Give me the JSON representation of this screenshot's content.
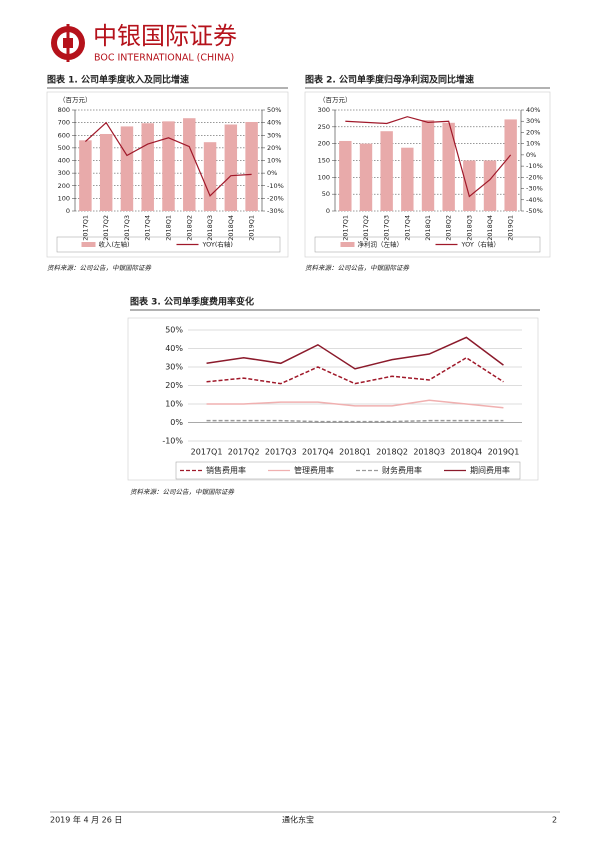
{
  "header": {
    "brand": "中银国际证券",
    "brand_en": "BOC INTERNATIONAL (CHINA)"
  },
  "chart_data": [
    {
      "type": "combo",
      "title": "图表 1. 公司单季度收入及同比增速",
      "unit": "（百万元）",
      "source": "资料来源：公司公告，中银国际证券",
      "categories": [
        "2017Q1",
        "2017Q2",
        "2017Q3",
        "2017Q4",
        "2018Q1",
        "2018Q2",
        "2018Q3",
        "2018Q4",
        "2019Q1"
      ],
      "series": [
        {
          "name": "收入(左轴)",
          "mark": "bar",
          "color": "#e8aaaa",
          "values": [
            560,
            610,
            670,
            695,
            710,
            735,
            545,
            685,
            705
          ]
        },
        {
          "name": "YOY(右轴)",
          "mark": "line",
          "axis": "y2",
          "color": "#a0192a",
          "values": [
            25,
            40,
            14,
            23,
            28,
            21,
            -18,
            -2,
            -1
          ]
        }
      ],
      "ylim": [
        0,
        800
      ],
      "yticks": [
        0,
        100,
        200,
        300,
        400,
        500,
        600,
        700,
        800
      ],
      "y2lim": [
        -30,
        50
      ],
      "y2ticks": [
        {
          "value": -30,
          "label": "-30%"
        },
        {
          "value": -20,
          "label": "-20%"
        },
        {
          "value": -10,
          "label": "-10%"
        },
        {
          "value": 0,
          "label": "0%"
        },
        {
          "value": 10,
          "label": "10%"
        },
        {
          "value": 20,
          "label": "20%"
        },
        {
          "value": 30,
          "label": "30%"
        },
        {
          "value": 40,
          "label": "40%"
        },
        {
          "value": 50,
          "label": "50%"
        }
      ],
      "grid": true
    },
    {
      "type": "combo",
      "title": "图表 2. 公司单季度归母净利润及同比增速",
      "unit": "（百万元）",
      "source": "资料来源：公司公告，中银国际证券",
      "categories": [
        "2017Q1",
        "2017Q2",
        "2017Q3",
        "2017Q4",
        "2018Q1",
        "2018Q2",
        "2018Q3",
        "2018Q4",
        "2019Q1"
      ],
      "series": [
        {
          "name": "净利润（左轴）",
          "mark": "bar",
          "color": "#e8aaaa",
          "values": [
            208,
            200,
            237,
            188,
            270,
            262,
            150,
            150,
            272
          ]
        },
        {
          "name": "YOY（右轴）",
          "mark": "line",
          "axis": "y2",
          "color": "#a0192a",
          "values": [
            30,
            29,
            28,
            34,
            29,
            30,
            -37,
            -22,
            0
          ]
        }
      ],
      "ylim": [
        0,
        300
      ],
      "yticks": [
        0,
        50,
        100,
        150,
        200,
        250,
        300
      ],
      "y2lim": [
        -50,
        40
      ],
      "y2ticks": [
        {
          "value": -50,
          "label": "-50%"
        },
        {
          "value": -40,
          "label": "-40%"
        },
        {
          "value": -30,
          "label": "-30%"
        },
        {
          "value": -20,
          "label": "-20%"
        },
        {
          "value": -10,
          "label": "-10%"
        },
        {
          "value": 0,
          "label": "0%"
        },
        {
          "value": 10,
          "label": "10%"
        },
        {
          "value": 20,
          "label": "20%"
        },
        {
          "value": 30,
          "label": "30%"
        },
        {
          "value": 40,
          "label": "40%"
        }
      ],
      "grid": true
    },
    {
      "type": "line",
      "title": "图表 3. 公司单季度费用率变化",
      "source": "资料来源：公司公告，中银国际证券",
      "categories": [
        "2017Q1",
        "2017Q2",
        "2017Q3",
        "2017Q4",
        "2018Q1",
        "2018Q2",
        "2018Q3",
        "2018Q4",
        "2019Q1"
      ],
      "series": [
        {
          "name": "销售费用率",
          "color": "#a0192a",
          "dash": true,
          "values": [
            22,
            24,
            21,
            30,
            21,
            25,
            23,
            35,
            22
          ]
        },
        {
          "name": "管理费用率",
          "color": "#f0b0b0",
          "dash": false,
          "values": [
            10,
            10,
            11,
            11,
            9,
            9,
            12,
            10,
            8
          ]
        },
        {
          "name": "财务费用率",
          "color": "#999999",
          "dash": true,
          "values": [
            1,
            1,
            1,
            0.5,
            0.5,
            0.5,
            1,
            1,
            1
          ]
        },
        {
          "name": "期间费用率",
          "color": "#8b1a2b",
          "dash": false,
          "values": [
            32,
            35,
            32,
            42,
            29,
            34,
            37,
            46,
            31
          ]
        }
      ],
      "ylim": [
        -10,
        50
      ],
      "yticks": [
        {
          "value": -10,
          "label": "-10%"
        },
        {
          "value": 0,
          "label": "0%"
        },
        {
          "value": 10,
          "label": "10%"
        },
        {
          "value": 20,
          "label": "20%"
        },
        {
          "value": 30,
          "label": "30%"
        },
        {
          "value": 40,
          "label": "40%"
        },
        {
          "value": 50,
          "label": "50%"
        }
      ],
      "grid": true
    }
  ],
  "footer": {
    "date": "2019 年 4 月 26 日",
    "company": "通化东宝",
    "page": "2"
  }
}
